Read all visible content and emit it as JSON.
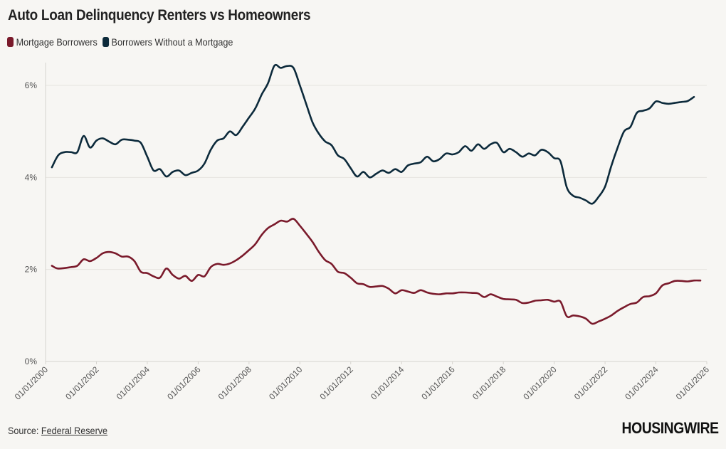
{
  "header": {
    "title": "Auto Loan Delinquency Renters vs Homeowners"
  },
  "source": {
    "label": "Source: ",
    "link_text": "Federal Reserve"
  },
  "branding": {
    "logo_text": "HOUSINGWIRE"
  },
  "colors": {
    "mortgage": "#7a1a2b",
    "no_mortgage": "#0c2a3b",
    "grid": "#e6e4df",
    "axis": "#d6d4cf"
  },
  "chart_data": {
    "type": "line",
    "title": "Auto Loan Delinquency Renters vs Homeowners",
    "xlabel": "",
    "ylabel": "",
    "x_range": [
      "2000-01-01",
      "2026-01-01"
    ],
    "ylim": [
      0,
      6.5
    ],
    "y_ticks": [
      0,
      2,
      4,
      6
    ],
    "y_tick_labels": [
      "0%",
      "2%",
      "4%",
      "6%"
    ],
    "x_tick_labels": [
      "01/01/2000",
      "01/01/2002",
      "01/01/2004",
      "01/01/2006",
      "01/01/2008",
      "01/01/2010",
      "01/01/2012",
      "01/01/2014",
      "01/01/2016",
      "01/01/2018",
      "01/01/2020",
      "01/01/2022",
      "01/01/2024",
      "01/01/2026"
    ],
    "grid": true,
    "legend_position": "top-left",
    "series": [
      {
        "name": "Mortgage Borrowers",
        "color": "#7a1a2b",
        "points": [
          [
            "2000-04-01",
            2.08
          ],
          [
            "2000-07-01",
            2.02
          ],
          [
            "2001-01-01",
            2.05
          ],
          [
            "2001-04-01",
            2.08
          ],
          [
            "2001-07-01",
            2.22
          ],
          [
            "2001-10-01",
            2.18
          ],
          [
            "2002-01-01",
            2.25
          ],
          [
            "2002-04-01",
            2.35
          ],
          [
            "2002-07-01",
            2.38
          ],
          [
            "2002-10-01",
            2.35
          ],
          [
            "2003-01-01",
            2.28
          ],
          [
            "2003-04-01",
            2.28
          ],
          [
            "2003-07-01",
            2.18
          ],
          [
            "2003-10-01",
            1.95
          ],
          [
            "2004-01-01",
            1.92
          ],
          [
            "2004-04-01",
            1.85
          ],
          [
            "2004-07-01",
            1.82
          ],
          [
            "2004-10-01",
            2.02
          ],
          [
            "2005-01-01",
            1.88
          ],
          [
            "2005-04-01",
            1.8
          ],
          [
            "2005-07-01",
            1.86
          ],
          [
            "2005-10-01",
            1.75
          ],
          [
            "2006-01-01",
            1.88
          ],
          [
            "2006-04-01",
            1.85
          ],
          [
            "2006-07-01",
            2.05
          ],
          [
            "2006-10-01",
            2.12
          ],
          [
            "2007-01-01",
            2.1
          ],
          [
            "2007-04-01",
            2.13
          ],
          [
            "2007-07-01",
            2.2
          ],
          [
            "2007-10-01",
            2.3
          ],
          [
            "2008-01-01",
            2.42
          ],
          [
            "2008-04-01",
            2.55
          ],
          [
            "2008-07-01",
            2.75
          ],
          [
            "2008-10-01",
            2.9
          ],
          [
            "2009-01-01",
            2.98
          ],
          [
            "2009-04-01",
            3.06
          ],
          [
            "2009-07-01",
            3.04
          ],
          [
            "2009-10-01",
            3.1
          ],
          [
            "2010-01-01",
            2.95
          ],
          [
            "2010-04-01",
            2.78
          ],
          [
            "2010-07-01",
            2.6
          ],
          [
            "2010-10-01",
            2.38
          ],
          [
            "2011-01-01",
            2.2
          ],
          [
            "2011-04-01",
            2.12
          ],
          [
            "2011-07-01",
            1.95
          ],
          [
            "2011-10-01",
            1.92
          ],
          [
            "2012-01-01",
            1.82
          ],
          [
            "2012-04-01",
            1.7
          ],
          [
            "2012-07-01",
            1.68
          ],
          [
            "2012-10-01",
            1.62
          ],
          [
            "2013-01-01",
            1.63
          ],
          [
            "2013-04-01",
            1.64
          ],
          [
            "2013-07-01",
            1.58
          ],
          [
            "2013-10-01",
            1.48
          ],
          [
            "2014-01-01",
            1.55
          ],
          [
            "2014-04-01",
            1.52
          ],
          [
            "2014-07-01",
            1.49
          ],
          [
            "2014-10-01",
            1.55
          ],
          [
            "2015-01-01",
            1.5
          ],
          [
            "2015-04-01",
            1.47
          ],
          [
            "2015-07-01",
            1.46
          ],
          [
            "2015-10-01",
            1.48
          ],
          [
            "2016-01-01",
            1.48
          ],
          [
            "2016-04-01",
            1.5
          ],
          [
            "2016-07-01",
            1.5
          ],
          [
            "2016-10-01",
            1.49
          ],
          [
            "2017-01-01",
            1.48
          ],
          [
            "2017-04-01",
            1.4
          ],
          [
            "2017-07-01",
            1.46
          ],
          [
            "2017-10-01",
            1.41
          ],
          [
            "2018-01-01",
            1.36
          ],
          [
            "2018-04-01",
            1.35
          ],
          [
            "2018-07-01",
            1.34
          ],
          [
            "2018-10-01",
            1.27
          ],
          [
            "2019-01-01",
            1.28
          ],
          [
            "2019-04-01",
            1.32
          ],
          [
            "2019-07-01",
            1.33
          ],
          [
            "2019-10-01",
            1.34
          ],
          [
            "2020-01-01",
            1.3
          ],
          [
            "2020-04-01",
            1.3
          ],
          [
            "2020-07-01",
            0.98
          ],
          [
            "2020-10-01",
            1.0
          ],
          [
            "2021-01-01",
            0.98
          ],
          [
            "2021-04-01",
            0.93
          ],
          [
            "2021-07-01",
            0.82
          ],
          [
            "2021-10-01",
            0.87
          ],
          [
            "2022-01-01",
            0.93
          ],
          [
            "2022-04-01",
            1.0
          ],
          [
            "2022-07-01",
            1.1
          ],
          [
            "2022-10-01",
            1.18
          ],
          [
            "2023-01-01",
            1.25
          ],
          [
            "2023-04-01",
            1.28
          ],
          [
            "2023-07-01",
            1.4
          ],
          [
            "2023-10-01",
            1.42
          ],
          [
            "2024-01-01",
            1.48
          ],
          [
            "2024-04-01",
            1.65
          ],
          [
            "2024-07-01",
            1.7
          ],
          [
            "2024-10-01",
            1.75
          ],
          [
            "2025-01-01",
            1.75
          ],
          [
            "2025-04-01",
            1.74
          ],
          [
            "2025-07-01",
            1.76
          ],
          [
            "2025-10-01",
            1.76
          ]
        ]
      },
      {
        "name": "Borrowers Without a Mortgage",
        "color": "#0c2a3b",
        "points": [
          [
            "2000-04-01",
            4.22
          ],
          [
            "2000-07-01",
            4.48
          ],
          [
            "2000-10-01",
            4.55
          ],
          [
            "2001-01-01",
            4.55
          ],
          [
            "2001-04-01",
            4.55
          ],
          [
            "2001-07-01",
            4.9
          ],
          [
            "2001-10-01",
            4.65
          ],
          [
            "2002-01-01",
            4.8
          ],
          [
            "2002-04-01",
            4.85
          ],
          [
            "2002-07-01",
            4.78
          ],
          [
            "2002-10-01",
            4.72
          ],
          [
            "2003-01-01",
            4.82
          ],
          [
            "2003-04-01",
            4.82
          ],
          [
            "2003-07-01",
            4.8
          ],
          [
            "2003-10-01",
            4.75
          ],
          [
            "2004-01-01",
            4.45
          ],
          [
            "2004-04-01",
            4.15
          ],
          [
            "2004-07-01",
            4.18
          ],
          [
            "2004-10-01",
            4.02
          ],
          [
            "2005-01-01",
            4.12
          ],
          [
            "2005-04-01",
            4.15
          ],
          [
            "2005-07-01",
            4.05
          ],
          [
            "2005-10-01",
            4.1
          ],
          [
            "2006-01-01",
            4.15
          ],
          [
            "2006-04-01",
            4.3
          ],
          [
            "2006-07-01",
            4.6
          ],
          [
            "2006-10-01",
            4.8
          ],
          [
            "2007-01-01",
            4.85
          ],
          [
            "2007-04-01",
            5.0
          ],
          [
            "2007-07-01",
            4.92
          ],
          [
            "2007-10-01",
            5.1
          ],
          [
            "2008-01-01",
            5.3
          ],
          [
            "2008-04-01",
            5.5
          ],
          [
            "2008-07-01",
            5.8
          ],
          [
            "2008-10-01",
            6.05
          ],
          [
            "2009-01-01",
            6.43
          ],
          [
            "2009-04-01",
            6.38
          ],
          [
            "2009-07-01",
            6.42
          ],
          [
            "2009-10-01",
            6.38
          ],
          [
            "2010-01-01",
            6.0
          ],
          [
            "2010-04-01",
            5.6
          ],
          [
            "2010-07-01",
            5.2
          ],
          [
            "2010-10-01",
            4.95
          ],
          [
            "2011-01-01",
            4.78
          ],
          [
            "2011-04-01",
            4.7
          ],
          [
            "2011-07-01",
            4.48
          ],
          [
            "2011-10-01",
            4.4
          ],
          [
            "2012-01-01",
            4.2
          ],
          [
            "2012-04-01",
            4.02
          ],
          [
            "2012-07-01",
            4.12
          ],
          [
            "2012-10-01",
            4.0
          ],
          [
            "2013-01-01",
            4.08
          ],
          [
            "2013-04-01",
            4.15
          ],
          [
            "2013-07-01",
            4.1
          ],
          [
            "2013-10-01",
            4.18
          ],
          [
            "2014-01-01",
            4.12
          ],
          [
            "2014-04-01",
            4.26
          ],
          [
            "2014-07-01",
            4.3
          ],
          [
            "2014-10-01",
            4.33
          ],
          [
            "2015-01-01",
            4.45
          ],
          [
            "2015-04-01",
            4.35
          ],
          [
            "2015-07-01",
            4.4
          ],
          [
            "2015-10-01",
            4.52
          ],
          [
            "2016-01-01",
            4.5
          ],
          [
            "2016-04-01",
            4.55
          ],
          [
            "2016-07-01",
            4.68
          ],
          [
            "2016-10-01",
            4.58
          ],
          [
            "2017-01-01",
            4.72
          ],
          [
            "2017-04-01",
            4.62
          ],
          [
            "2017-07-01",
            4.72
          ],
          [
            "2017-10-01",
            4.75
          ],
          [
            "2018-01-01",
            4.55
          ],
          [
            "2018-04-01",
            4.62
          ],
          [
            "2018-07-01",
            4.55
          ],
          [
            "2018-10-01",
            4.45
          ],
          [
            "2019-01-01",
            4.52
          ],
          [
            "2019-04-01",
            4.48
          ],
          [
            "2019-07-01",
            4.6
          ],
          [
            "2019-10-01",
            4.55
          ],
          [
            "2020-01-01",
            4.42
          ],
          [
            "2020-04-01",
            4.35
          ],
          [
            "2020-07-01",
            3.78
          ],
          [
            "2020-10-01",
            3.6
          ],
          [
            "2021-01-01",
            3.56
          ],
          [
            "2021-04-01",
            3.5
          ],
          [
            "2021-07-01",
            3.43
          ],
          [
            "2021-10-01",
            3.58
          ],
          [
            "2022-01-01",
            3.8
          ],
          [
            "2022-04-01",
            4.25
          ],
          [
            "2022-07-01",
            4.65
          ],
          [
            "2022-10-01",
            5.0
          ],
          [
            "2023-01-01",
            5.1
          ],
          [
            "2023-04-01",
            5.4
          ],
          [
            "2023-07-01",
            5.45
          ],
          [
            "2023-10-01",
            5.5
          ],
          [
            "2024-01-01",
            5.65
          ],
          [
            "2024-04-01",
            5.62
          ],
          [
            "2024-07-01",
            5.6
          ],
          [
            "2024-10-01",
            5.62
          ],
          [
            "2025-01-01",
            5.64
          ],
          [
            "2025-04-01",
            5.66
          ],
          [
            "2025-07-01",
            5.75
          ]
        ]
      }
    ]
  }
}
